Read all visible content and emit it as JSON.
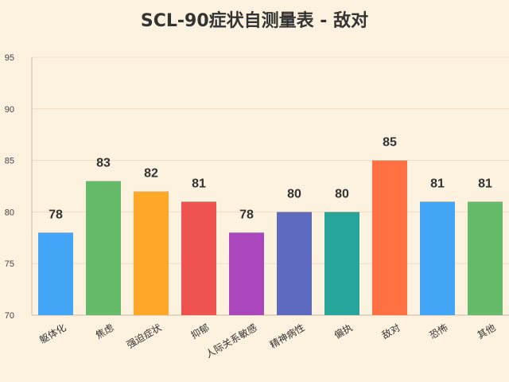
{
  "chart_data": {
    "type": "bar",
    "title": "SCL-90症状自测量表 - 敌对",
    "xlabel": "",
    "ylabel": "",
    "ylim": [
      70,
      95
    ],
    "yticks": [
      70,
      75,
      80,
      85,
      90,
      95
    ],
    "grid": true,
    "legend": "none",
    "categories": [
      "躯体化",
      "焦虑",
      "强迫症状",
      "抑郁",
      "人际关系敏感",
      "精神病性",
      "偏执",
      "敌对",
      "恐怖",
      "其他"
    ],
    "values": [
      78,
      83,
      82,
      81,
      78,
      80,
      80,
      85,
      81,
      81
    ],
    "colors": [
      "#42a5f5",
      "#66bb6a",
      "#ffa726",
      "#ef5350",
      "#ab47bc",
      "#5c6bc0",
      "#26a69a",
      "#ff7043",
      "#42a5f5",
      "#66bb6a"
    ]
  }
}
